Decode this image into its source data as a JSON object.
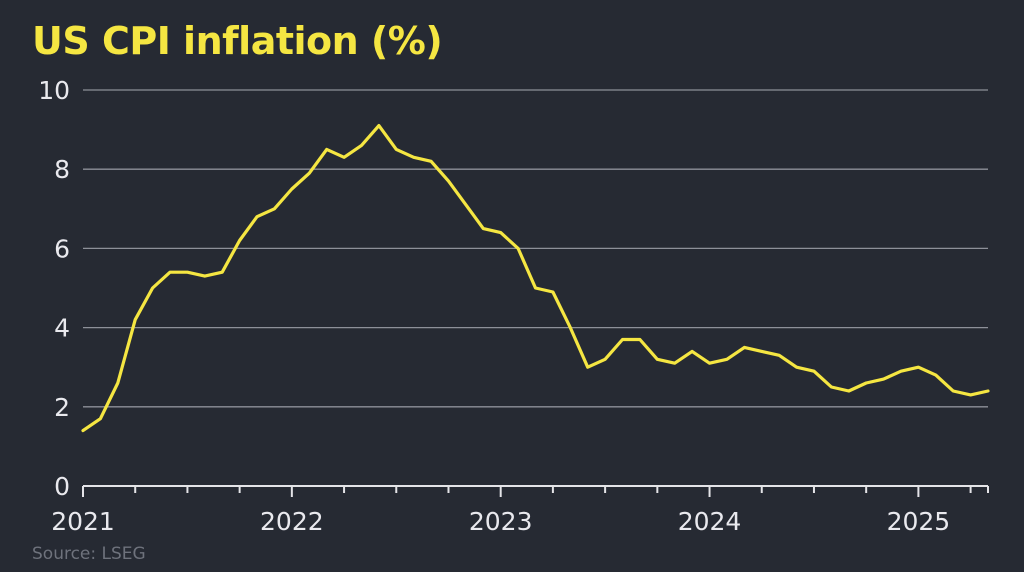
{
  "chart_data": {
    "type": "line",
    "title": "US CPI inflation (%)",
    "source": "Source: LSEG",
    "xlabel": "",
    "ylabel": "",
    "ylim": [
      0,
      10
    ],
    "yticks": [
      0,
      2,
      4,
      6,
      8,
      10
    ],
    "xlim": [
      2021.0,
      2025.3333
    ],
    "xticks": [
      {
        "value": 2021,
        "label": "2021"
      },
      {
        "value": 2022,
        "label": "2022"
      },
      {
        "value": 2023,
        "label": "2023"
      },
      {
        "value": 2024,
        "label": "2024"
      },
      {
        "value": 2025,
        "label": "2025"
      }
    ],
    "grid": true,
    "series": [
      {
        "name": "US CPI inflation",
        "color": "#f5e642",
        "start": "2021-01",
        "frequency": "monthly",
        "values": [
          1.4,
          1.7,
          2.6,
          4.2,
          5.0,
          5.4,
          5.4,
          5.3,
          5.4,
          6.2,
          6.8,
          7.0,
          7.5,
          7.9,
          8.5,
          8.3,
          8.6,
          9.1,
          8.5,
          8.3,
          8.2,
          7.7,
          7.1,
          6.5,
          6.4,
          6.0,
          5.0,
          4.9,
          4.0,
          3.0,
          3.2,
          3.7,
          3.7,
          3.2,
          3.1,
          3.4,
          3.1,
          3.2,
          3.5,
          3.4,
          3.3,
          3.0,
          2.9,
          2.5,
          2.4,
          2.6,
          2.7,
          2.9,
          3.0,
          2.8,
          2.4,
          2.3,
          2.4
        ]
      }
    ]
  }
}
